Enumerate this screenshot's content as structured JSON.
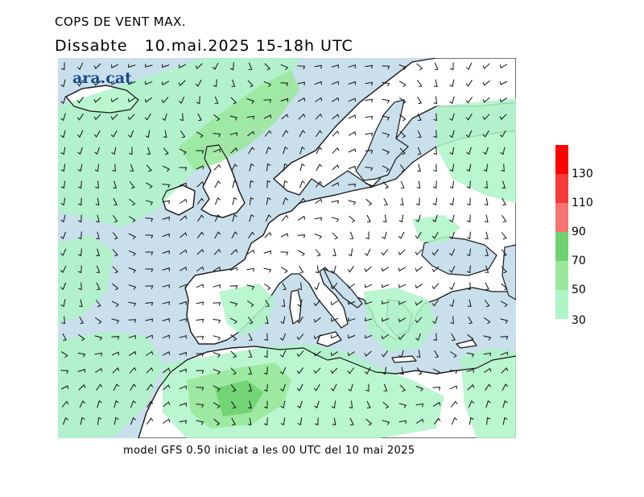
{
  "header": {
    "title": "COPS DE VENT MAX.",
    "subtitle": "Dissabte   10.mai.2025 15-18h UTC"
  },
  "logo": {
    "text": "ara.cat"
  },
  "footer": {
    "text": "model GFS 0.50 iniciat a les 00 UTC del 10 mai 2025"
  },
  "legend": {
    "items": [
      {
        "label": "130",
        "color": "#ff0000"
      },
      {
        "label": "110",
        "color": "#f53a3a"
      },
      {
        "label": "90",
        "color": "#f57373"
      },
      {
        "label": "70",
        "color": "#6fd170"
      },
      {
        "label": "50",
        "color": "#9ae89b"
      },
      {
        "label": "30",
        "color": "#aef5c7"
      }
    ]
  },
  "colors": {
    "sea": "#c9dfec",
    "land": "#ffffff",
    "coast": "#1a1a1a",
    "wind_30": "#aef5c7",
    "wind_50": "#9ae89b",
    "wind_70": "#6fd170",
    "barbs": "#111111"
  }
}
